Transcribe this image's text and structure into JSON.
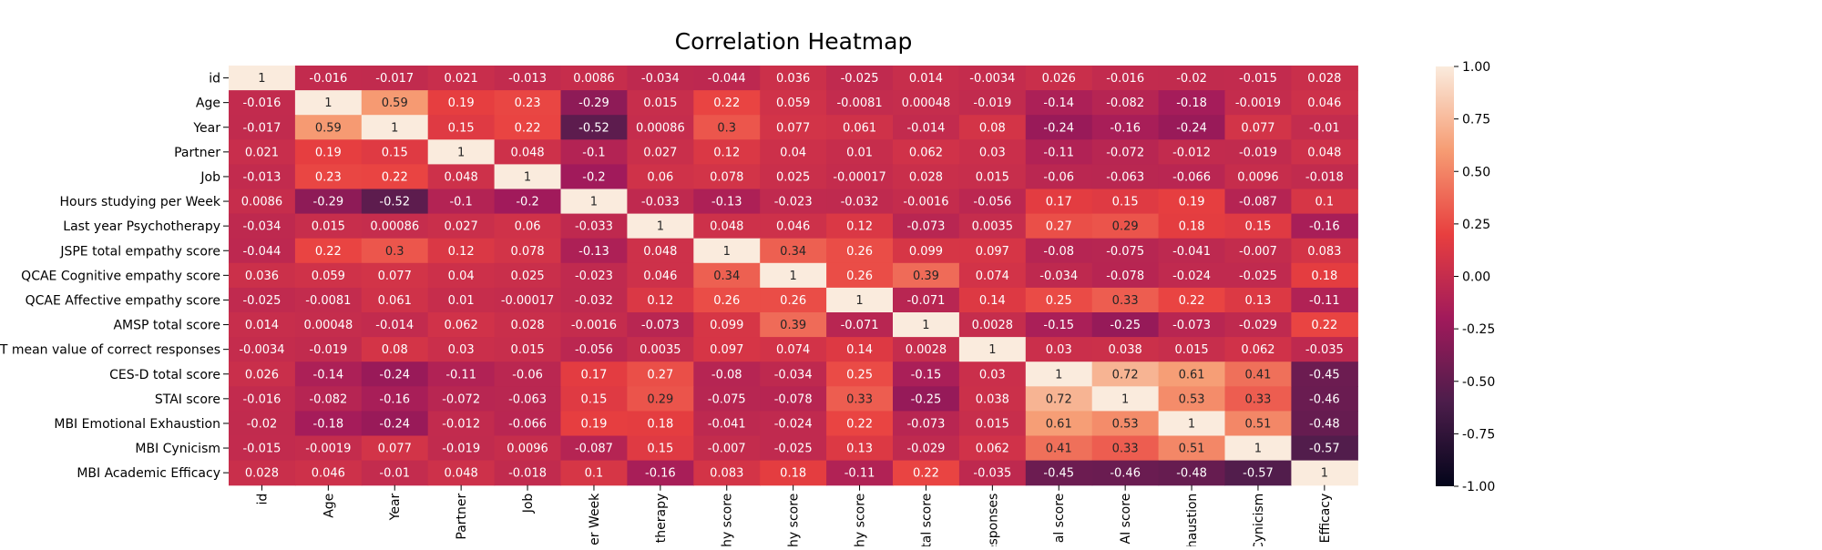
{
  "chart_data": {
    "type": "heatmap",
    "title": "Correlation Heatmap",
    "xlabel": "",
    "ylabel": "",
    "row_labels": [
      "id",
      "Age",
      "Year",
      "Partner",
      "Job",
      "Hours studying per Week",
      "Last year Psychotherapy",
      "JSPE total empathy score",
      "QCAE Cognitive empathy score",
      "QCAE Affective empathy score",
      "AMSP total score",
      "T mean value of correct responses",
      "CES-D total score",
      "STAI score",
      "MBI Emotional Exhaustion",
      "MBI Cynicism",
      "MBI Academic Efficacy"
    ],
    "col_labels": [
      "id",
      "Age",
      "Year",
      "Partner",
      "Job",
      "er Week",
      "therapy",
      "hy score",
      "hy score",
      "hy score",
      "tal score",
      "esponses",
      "al score",
      "AI score",
      "haustion",
      "Cynicism",
      "Efficacy"
    ],
    "values": [
      [
        "1",
        "-0.016",
        "-0.017",
        "0.021",
        "-0.013",
        "0.0086",
        "-0.034",
        "-0.044",
        "0.036",
        "-0.025",
        "0.014",
        "-0.0034",
        "0.026",
        "-0.016",
        "-0.02",
        "-0.015",
        "0.028"
      ],
      [
        "-0.016",
        "1",
        "0.59",
        "0.19",
        "0.23",
        "-0.29",
        "0.015",
        "0.22",
        "0.059",
        "-0.0081",
        "0.00048",
        "-0.019",
        "-0.14",
        "-0.082",
        "-0.18",
        "-0.0019",
        "0.046"
      ],
      [
        "-0.017",
        "0.59",
        "1",
        "0.15",
        "0.22",
        "-0.52",
        "0.00086",
        "0.3",
        "0.077",
        "0.061",
        "-0.014",
        "0.08",
        "-0.24",
        "-0.16",
        "-0.24",
        "0.077",
        "-0.01"
      ],
      [
        "0.021",
        "0.19",
        "0.15",
        "1",
        "0.048",
        "-0.1",
        "0.027",
        "0.12",
        "0.04",
        "0.01",
        "0.062",
        "0.03",
        "-0.11",
        "-0.072",
        "-0.012",
        "-0.019",
        "0.048"
      ],
      [
        "-0.013",
        "0.23",
        "0.22",
        "0.048",
        "1",
        "-0.2",
        "0.06",
        "0.078",
        "0.025",
        "-0.00017",
        "0.028",
        "0.015",
        "-0.06",
        "-0.063",
        "-0.066",
        "0.0096",
        "-0.018"
      ],
      [
        "0.0086",
        "-0.29",
        "-0.52",
        "-0.1",
        "-0.2",
        "1",
        "-0.033",
        "-0.13",
        "-0.023",
        "-0.032",
        "-0.0016",
        "-0.056",
        "0.17",
        "0.15",
        "0.19",
        "-0.087",
        "0.1"
      ],
      [
        "-0.034",
        "0.015",
        "0.00086",
        "0.027",
        "0.06",
        "-0.033",
        "1",
        "0.048",
        "0.046",
        "0.12",
        "-0.073",
        "0.0035",
        "0.27",
        "0.29",
        "0.18",
        "0.15",
        "-0.16"
      ],
      [
        "-0.044",
        "0.22",
        "0.3",
        "0.12",
        "0.078",
        "-0.13",
        "0.048",
        "1",
        "0.34",
        "0.26",
        "0.099",
        "0.097",
        "-0.08",
        "-0.075",
        "-0.041",
        "-0.007",
        "0.083"
      ],
      [
        "0.036",
        "0.059",
        "0.077",
        "0.04",
        "0.025",
        "-0.023",
        "0.046",
        "0.34",
        "1",
        "0.26",
        "0.39",
        "0.074",
        "-0.034",
        "-0.078",
        "-0.024",
        "-0.025",
        "0.18"
      ],
      [
        "-0.025",
        "-0.0081",
        "0.061",
        "0.01",
        "-0.00017",
        "-0.032",
        "0.12",
        "0.26",
        "0.26",
        "1",
        "-0.071",
        "0.14",
        "0.25",
        "0.33",
        "0.22",
        "0.13",
        "-0.11"
      ],
      [
        "0.014",
        "0.00048",
        "-0.014",
        "0.062",
        "0.028",
        "-0.0016",
        "-0.073",
        "0.099",
        "0.39",
        "-0.071",
        "1",
        "0.0028",
        "-0.15",
        "-0.25",
        "-0.073",
        "-0.029",
        "0.22"
      ],
      [
        "-0.0034",
        "-0.019",
        "0.08",
        "0.03",
        "0.015",
        "-0.056",
        "0.0035",
        "0.097",
        "0.074",
        "0.14",
        "0.0028",
        "1",
        "0.03",
        "0.038",
        "0.015",
        "0.062",
        "-0.035"
      ],
      [
        "0.026",
        "-0.14",
        "-0.24",
        "-0.11",
        "-0.06",
        "0.17",
        "0.27",
        "-0.08",
        "-0.034",
        "0.25",
        "-0.15",
        "0.03",
        "1",
        "0.72",
        "0.61",
        "0.41",
        "-0.45"
      ],
      [
        "-0.016",
        "-0.082",
        "-0.16",
        "-0.072",
        "-0.063",
        "0.15",
        "0.29",
        "-0.075",
        "-0.078",
        "0.33",
        "-0.25",
        "0.038",
        "0.72",
        "1",
        "0.53",
        "0.33",
        "-0.46"
      ],
      [
        "-0.02",
        "-0.18",
        "-0.24",
        "-0.012",
        "-0.066",
        "0.19",
        "0.18",
        "-0.041",
        "-0.024",
        "0.22",
        "-0.073",
        "0.015",
        "0.61",
        "0.53",
        "1",
        "0.51",
        "-0.48"
      ],
      [
        "-0.015",
        "-0.0019",
        "0.077",
        "-0.019",
        "0.0096",
        "-0.087",
        "0.15",
        "-0.007",
        "-0.025",
        "0.13",
        "-0.029",
        "0.062",
        "0.41",
        "0.33",
        "0.51",
        "1",
        "-0.57"
      ],
      [
        "0.028",
        "0.046",
        "-0.01",
        "0.048",
        "-0.018",
        "0.1",
        "-0.16",
        "0.083",
        "0.18",
        "-0.11",
        "0.22",
        "-0.035",
        "-0.45",
        "-0.46",
        "-0.48",
        "-0.57",
        "1"
      ]
    ],
    "colorbar": {
      "range": [
        -1.0,
        1.0
      ],
      "ticks": [
        "1.00",
        "0.75",
        "0.50",
        "0.25",
        "0.00",
        "-0.25",
        "-0.50",
        "-0.75",
        "-1.00"
      ],
      "colormap": "rocket",
      "colors": [
        "#03051a",
        "#4c1d4b",
        "#a11a5b",
        "#e83f3f",
        "#f69c73",
        "#faebdd"
      ]
    },
    "grid": false,
    "legend": "colorbar-right"
  }
}
